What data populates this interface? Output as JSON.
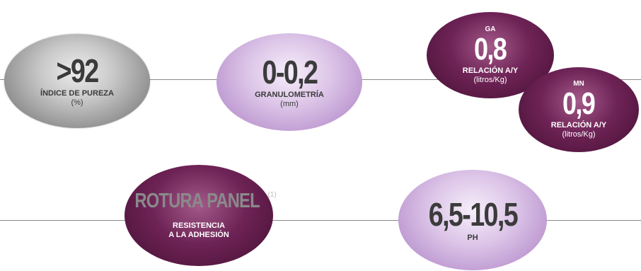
{
  "pureza": {
    "value": ">92",
    "label": "ÍNDICE DE PUREZA",
    "unit": "(%)"
  },
  "granulometria": {
    "value": "0-0,2",
    "label": "GRANULOMETRÍA",
    "unit": "(mm)"
  },
  "ga": {
    "prefix": "GA",
    "value": "0,8",
    "label": "RELACIÓN A/Y",
    "unit": "(litros/Kg)"
  },
  "mn": {
    "prefix": "MN",
    "value": "0,9",
    "label": "RELACIÓN A/Y",
    "unit": "(litros/Kg)"
  },
  "rotura": {
    "value": "ROTURA PANEL",
    "footnote": "(1)",
    "label_line1": "RESISTENCIA",
    "label_line2": "A LA ADHESIÓN"
  },
  "ph": {
    "value": "6,5-10,5",
    "label": "PH"
  },
  "colors": {
    "grey": "#9a9a9a",
    "lilac": "#c9a8da",
    "plum": "#5a1a45",
    "text_dark": "#3b3b3b"
  }
}
